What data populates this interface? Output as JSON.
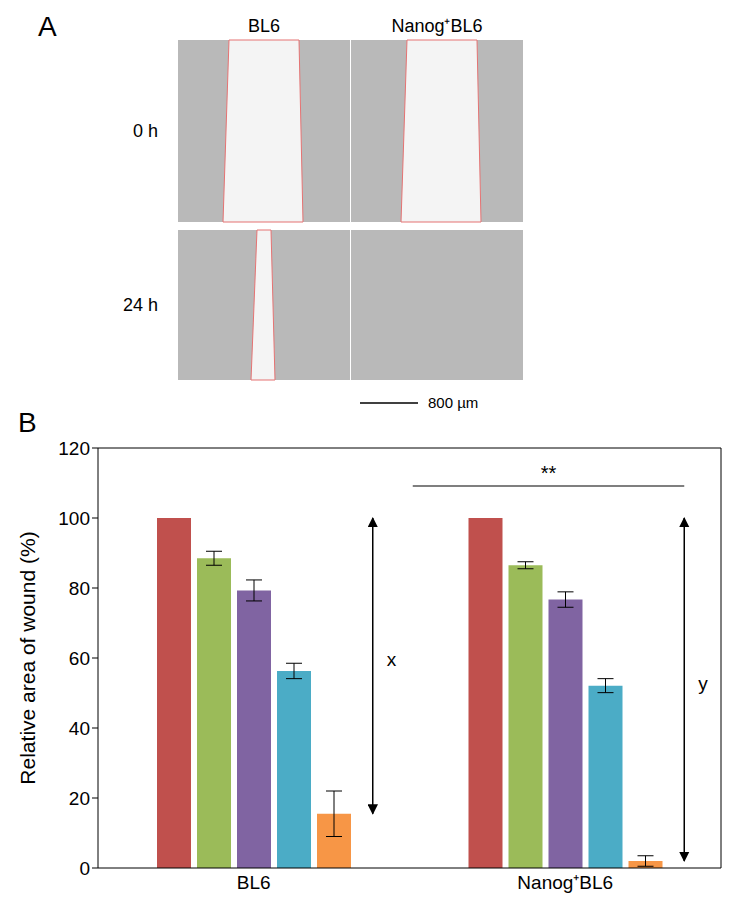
{
  "panels": {
    "a": {
      "label": "A",
      "columns": [
        "BL6",
        "Nanog⁺BL6"
      ],
      "rows": [
        "0 h",
        "24 h"
      ],
      "scale_bar": "800 µm"
    },
    "b": {
      "label": "B"
    }
  },
  "chart_data": {
    "type": "bar",
    "categories": [
      "BL6",
      "Nanog⁺BL6"
    ],
    "y_label": "Relative area of wound (%)",
    "ylim": [
      0,
      120
    ],
    "yticks": [
      0,
      20,
      40,
      60,
      80,
      100,
      120
    ],
    "grid": false,
    "series": [
      {
        "color": "#c0504d",
        "values": [
          100,
          100
        ],
        "errors": [
          0,
          0
        ]
      },
      {
        "color": "#9bbb59",
        "values": [
          88.5,
          86.5
        ],
        "errors": [
          2,
          1
        ]
      },
      {
        "color": "#8064a2",
        "values": [
          79.3,
          76.7
        ],
        "errors": [
          3,
          2.2
        ]
      },
      {
        "color": "#4bacc6",
        "values": [
          56.3,
          52.1
        ],
        "errors": [
          2.2,
          2
        ]
      },
      {
        "color": "#f79646",
        "values": [
          15.5,
          2
        ],
        "errors": [
          6.5,
          1.5
        ]
      }
    ],
    "annotations": {
      "significance": "**",
      "arrows": [
        "x",
        "y"
      ]
    }
  }
}
